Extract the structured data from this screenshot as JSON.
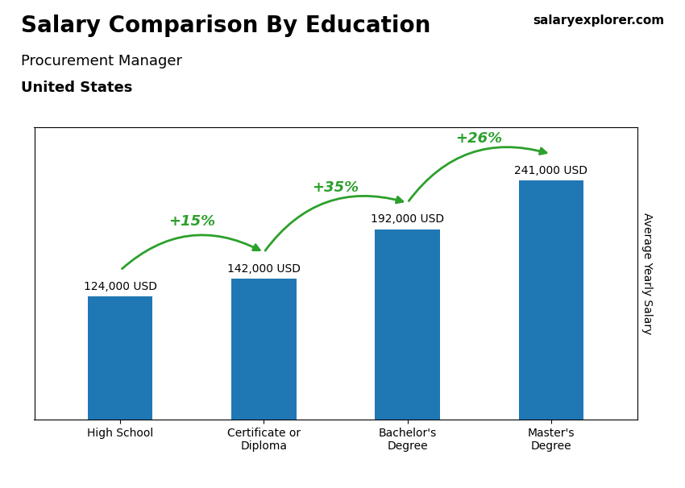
{
  "chart_data": {
    "type": "bar",
    "title": "Salary Comparison By Education",
    "subtitle": "Procurement Manager",
    "location": "United States",
    "source": "salaryexplorer.com",
    "ylabel": "Average Yearly Salary",
    "categories": [
      "High School",
      "Certificate or\nDiploma",
      "Bachelor's\nDegree",
      "Master's\nDegree"
    ],
    "values": [
      124000,
      142000,
      192000,
      241000
    ],
    "value_labels": [
      "124,000 USD",
      "142,000 USD",
      "192,000 USD",
      "241,000 USD"
    ],
    "data_labels": true,
    "annotations": [
      "+15%",
      "+35%",
      "+26%"
    ],
    "ylim": [
      0,
      295000
    ],
    "tick_labels": "x",
    "grid": false
  }
}
